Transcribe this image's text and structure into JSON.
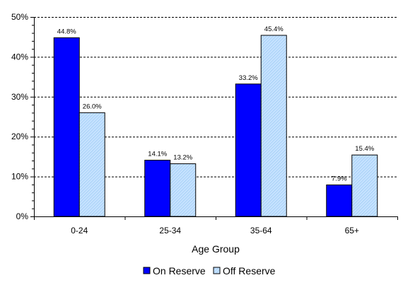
{
  "chart_data": {
    "type": "bar",
    "title": "",
    "xlabel": "Age Group",
    "ylabel": "",
    "categories": [
      "0-24",
      "25-34",
      "35-64",
      "65+"
    ],
    "series": [
      {
        "name": "On Reserve",
        "values": [
          44.8,
          14.1,
          33.2,
          7.9
        ],
        "labels": [
          "44.8%",
          "14.1%",
          "33.2%",
          "7.9%"
        ],
        "color": "#0000ff"
      },
      {
        "name": "Off Reserve",
        "values": [
          26.0,
          13.2,
          45.4,
          15.4
        ],
        "labels": [
          "26.0%",
          "13.2%",
          "45.4%",
          "15.4%"
        ],
        "color": "#bfe0ff"
      }
    ],
    "ylim": [
      0,
      50
    ],
    "yticks": [
      0,
      10,
      20,
      30,
      40,
      50
    ],
    "ytick_labels": [
      "0%",
      "10%",
      "20%",
      "30%",
      "40%",
      "50%"
    ],
    "grid": "horizontal dashed",
    "legend_position": "bottom"
  }
}
